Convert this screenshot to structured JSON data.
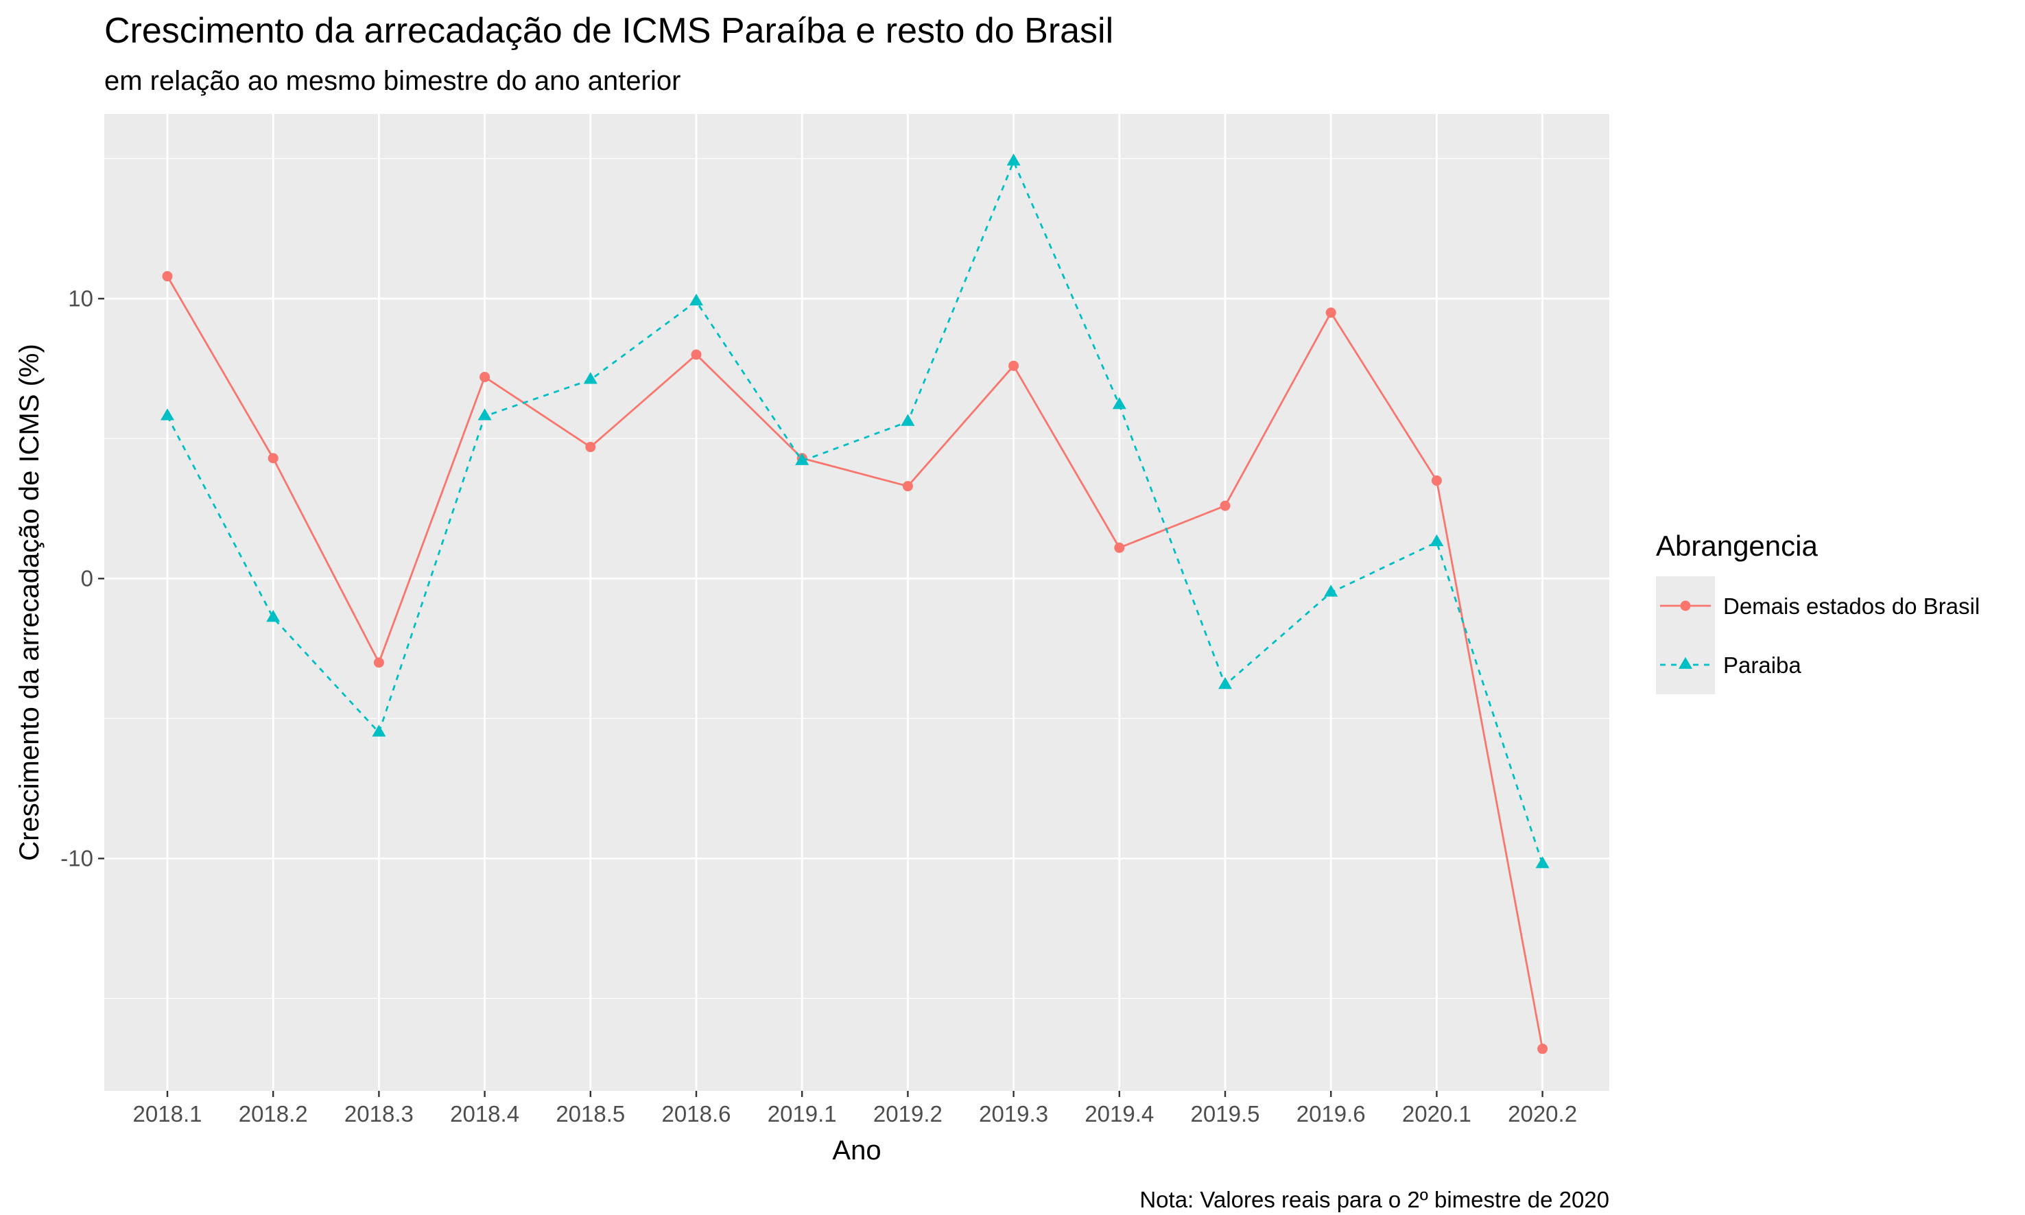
{
  "chart_data": {
    "type": "line",
    "title": "Crescimento da arrecadação de ICMS Paraíba e resto do Brasil",
    "subtitle": "em relação ao mesmo bimestre do ano anterior",
    "xlabel": "Ano",
    "ylabel": "Crescimento da arrecadação de ICMS (%)",
    "caption": "Nota: Valores reais para o 2º bimestre de 2020",
    "categories": [
      "2018.1",
      "2018.2",
      "2018.3",
      "2018.4",
      "2018.5",
      "2018.6",
      "2019.1",
      "2019.2",
      "2019.3",
      "2019.4",
      "2019.5",
      "2019.6",
      "2020.1",
      "2020.2"
    ],
    "ylim": [
      -18.3,
      16.6
    ],
    "yticks": [
      -10,
      0,
      10
    ],
    "ytick_labels": [
      "-10",
      "0",
      "10"
    ],
    "grid": true,
    "legend_title": "Abrangencia",
    "legend_position": "right",
    "series": [
      {
        "name": "Demais estados do Brasil",
        "color": "#F8766D",
        "line": "solid",
        "marker": "circle",
        "values": [
          10.8,
          4.3,
          -3.0,
          7.2,
          4.7,
          8.0,
          4.3,
          3.3,
          7.6,
          1.1,
          2.6,
          9.5,
          3.5,
          -16.8
        ]
      },
      {
        "name": "Paraiba",
        "color": "#00BFC4",
        "line": "dashed",
        "marker": "triangle",
        "values": [
          5.8,
          -1.4,
          -5.5,
          5.8,
          7.1,
          9.9,
          4.2,
          5.6,
          14.9,
          6.2,
          -3.8,
          -0.5,
          1.3,
          -10.2
        ]
      }
    ]
  }
}
